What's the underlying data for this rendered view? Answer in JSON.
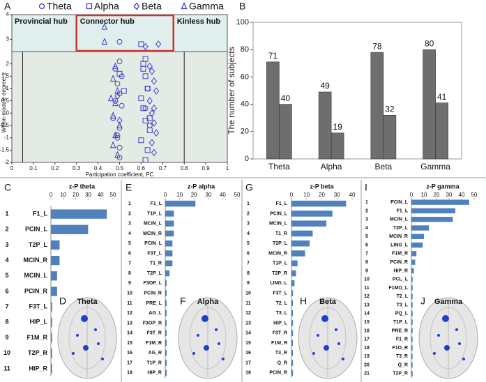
{
  "chart_data": [
    {
      "type": "scatter",
      "panel": "A",
      "xlabel": "Participation coefficient, PC",
      "ylabel": "Within-module degree, z",
      "xlim": [
        0,
        1
      ],
      "xticks": [
        0,
        0.1,
        0.2,
        0.3,
        0.4,
        0.5,
        0.6,
        0.7,
        0.8,
        0.9,
        1
      ],
      "ylim": [
        -2,
        4
      ],
      "yticks": [
        -2,
        -1.5,
        -1,
        -0.5,
        0,
        0.5,
        1,
        1.5,
        2,
        3,
        4
      ],
      "z_threshold": 2.5,
      "pc_lines": [
        0.05,
        0.3,
        0.75,
        0.8
      ],
      "regions": [
        "Provincial hub",
        "Connector hub",
        "Kinless hub"
      ],
      "series": [
        {
          "name": "Theta",
          "marker": "circle",
          "color": "#2b2bd6",
          "x": [
            0.5,
            0.48,
            0.49,
            0.5,
            0.51,
            0.47,
            0.5,
            0.49,
            0.5,
            0.48,
            0.51,
            0.5,
            0.49,
            0.63,
            0.64,
            0.62,
            0.5
          ],
          "y": [
            2.9,
            1.8,
            1.2,
            0.8,
            0.3,
            -0.2,
            -0.6,
            -1.0,
            -1.4,
            0.5,
            1.5,
            2.1,
            -0.9,
            1.0,
            -0.5,
            0.2,
            -1.8
          ]
        },
        {
          "name": "Alpha",
          "marker": "square",
          "color": "#2b2bd6",
          "x": [
            0.6,
            0.61,
            0.62,
            0.63,
            0.6,
            0.61,
            0.62,
            0.64,
            0.6,
            0.63,
            0.62,
            0.61,
            0.5,
            0.52,
            0.64,
            0.62
          ],
          "y": [
            2.8,
            2.0,
            1.5,
            1.0,
            0.6,
            0.2,
            -0.3,
            -0.7,
            -1.1,
            -1.5,
            -1.9,
            1.8,
            1.6,
            0.9,
            -0.2,
            2.2
          ]
        },
        {
          "name": "Beta",
          "marker": "diamond",
          "color": "#2b2bd6",
          "x": [
            0.62,
            0.68,
            0.65,
            0.66,
            0.67,
            0.64,
            0.65,
            0.66,
            0.67,
            0.65,
            0.66,
            0.64,
            0.66,
            0.49,
            0.5
          ],
          "y": [
            2.7,
            2.8,
            1.7,
            1.3,
            0.9,
            0.5,
            0.0,
            -0.4,
            -0.8,
            -1.2,
            0.2,
            1.9,
            -1.6,
            0.7,
            -0.3
          ]
        },
        {
          "name": "Gamma",
          "marker": "triangle",
          "color": "#2b2bd6",
          "x": [
            0.43,
            0.43,
            0.48,
            0.47,
            0.49,
            0.48,
            0.47,
            0.5,
            0.48,
            0.47,
            0.49,
            0.46
          ],
          "y": [
            3.5,
            2.9,
            1.9,
            1.4,
            0.9,
            0.4,
            -0.1,
            -0.5,
            -0.9,
            -1.3,
            -1.7,
            0.6
          ]
        }
      ]
    },
    {
      "type": "bar",
      "panel": "B",
      "ylabel": "The number of subjects",
      "categories": [
        "Theta",
        "Alpha",
        "Beta",
        "Gamma"
      ],
      "series": [
        {
          "color": "#6e6e6e",
          "values": [
            71,
            49,
            78,
            80
          ]
        },
        {
          "color": "#6e6e6e",
          "values": [
            40,
            19,
            32,
            41
          ]
        }
      ],
      "ylim": [
        0,
        100
      ],
      "yticks": [
        0,
        20,
        40,
        60,
        80,
        100
      ],
      "grid": false
    },
    {
      "type": "barh",
      "panel": "C",
      "title": "z-P theta",
      "color": "#4f81bd",
      "ranks": [
        1,
        2,
        3,
        4,
        5,
        6,
        7,
        8,
        9,
        10,
        11
      ],
      "categories": [
        "F1_L",
        "PCIN_L",
        "T2P_L",
        "MCIN_R",
        "MCIN_L",
        "PCIN_R",
        "F3T_L",
        "HIP_L",
        "F1M_R",
        "T2P_R",
        "HIP_R"
      ],
      "values": [
        45,
        30,
        7,
        7,
        5,
        5,
        1,
        1,
        1,
        1,
        1
      ],
      "xlim": [
        0,
        50
      ],
      "xticks": [
        0,
        10,
        20,
        30,
        40,
        50
      ],
      "inset": {
        "panel": "D",
        "label": "Theta"
      }
    },
    {
      "type": "barh",
      "panel": "E",
      "title": "z-P alpha",
      "color": "#4f81bd",
      "ranks": [
        1,
        2,
        3,
        4,
        5,
        6,
        7,
        8,
        9,
        10,
        11,
        12,
        13,
        14,
        15,
        16,
        17,
        18
      ],
      "categories": [
        "F1_L",
        "T1P_L",
        "MCIN_L",
        "MCIN_R",
        "PCIN_L",
        "F3T_L",
        "T1_R",
        "T2P_L",
        "F3OP_L",
        "PCIN_R",
        "PRE_L",
        "AG_L",
        "F3OP_R",
        "F3T_R",
        "F1M_R",
        "AG_R",
        "T1P_R",
        "HIP_R"
      ],
      "values": [
        21,
        6,
        6,
        6,
        5,
        5,
        5,
        3,
        1,
        1,
        1,
        1,
        1,
        1,
        1,
        1,
        1,
        1
      ],
      "xlim": [
        0,
        50
      ],
      "xticks": [
        0,
        10,
        20,
        30,
        40,
        50
      ],
      "inset": {
        "panel": "F",
        "label": "Alpha"
      }
    },
    {
      "type": "barh",
      "panel": "G",
      "title": "z-P beta",
      "color": "#4f81bd",
      "ranks": [
        1,
        2,
        3,
        4,
        5,
        6,
        7,
        8,
        9,
        10,
        11,
        12,
        13,
        14,
        15,
        16,
        17,
        18
      ],
      "categories": [
        "F1_L",
        "PCIN_L",
        "MCIN_L",
        "T1_R",
        "T2P_L",
        "MCIN_R",
        "T1P_L",
        "T2P_R",
        "LING_L",
        "F3T_L",
        "T2_L",
        "T3_L",
        "HIP_L",
        "F3T_R",
        "F1M_R",
        "T3_R",
        "Q_R",
        "PCIN_R"
      ],
      "values": [
        36,
        27,
        23,
        14,
        12,
        9,
        4,
        3,
        2,
        1,
        1,
        1,
        1,
        1,
        1,
        1,
        1,
        1
      ],
      "xlim": [
        0,
        40
      ],
      "xticks": [
        0,
        10,
        20,
        30,
        40
      ],
      "inset": {
        "panel": "H",
        "label": "Beta"
      }
    },
    {
      "type": "barh",
      "panel": "I",
      "title": "z-P gamma",
      "color": "#4f81bd",
      "ranks": [
        1,
        2,
        3,
        4,
        5,
        6,
        7,
        8,
        9,
        10,
        11,
        12,
        13,
        14,
        15,
        16,
        17,
        18,
        19,
        20,
        21
      ],
      "categories": [
        "PCIN_L",
        "F1_L",
        "MCIN_L",
        "T2P_L",
        "MCIN_R",
        "LING_L",
        "F1M_R",
        "PCIN_R",
        "HIP_R",
        "PCL_L",
        "F1MO_L",
        "T2_L",
        "T3_L",
        "PQ_L",
        "T1P_L",
        "PRE_R",
        "F1_R",
        "F1O_R",
        "T3_R",
        "Q_R",
        "T2P_R"
      ],
      "values": [
        46,
        35,
        33,
        14,
        10,
        9,
        4,
        3,
        2,
        1,
        1,
        1,
        1,
        1,
        1,
        1,
        1,
        1,
        1,
        1,
        1
      ],
      "xlim": [
        0,
        50
      ],
      "xticks": [
        0,
        10,
        20,
        30,
        40,
        50
      ],
      "inset": {
        "panel": "J",
        "label": "Gamma"
      }
    }
  ]
}
